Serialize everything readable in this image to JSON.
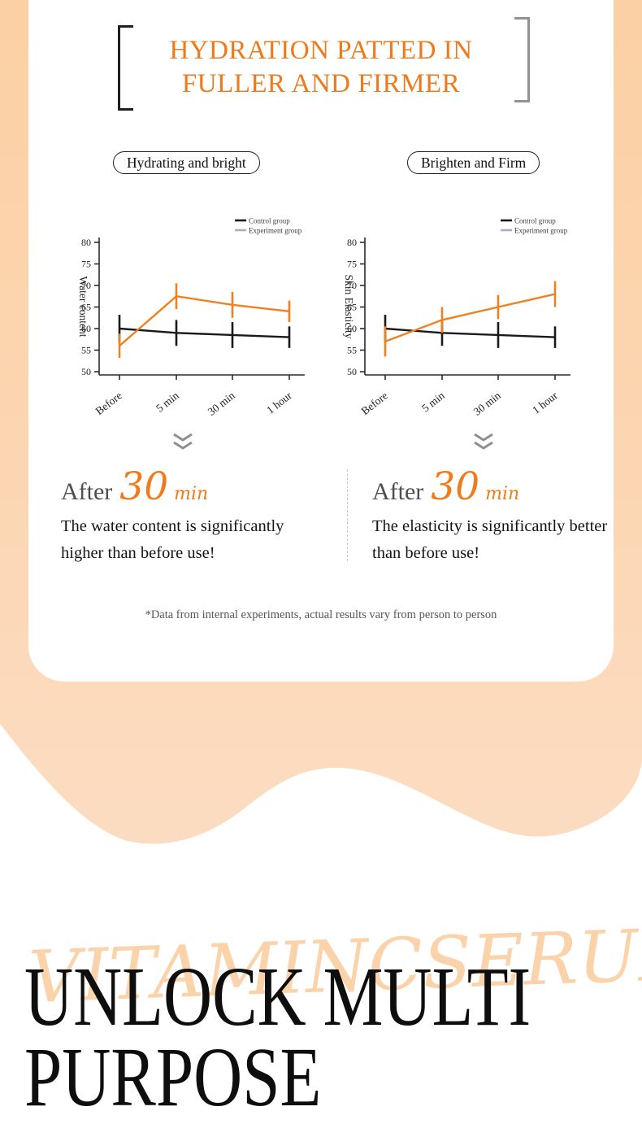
{
  "page": {
    "title_line1": "HYDRATION PATTED IN",
    "title_line2": "FULLER AND FIRMER",
    "pill_left": "Hydrating and bright",
    "pill_right": "Brighten and Firm",
    "disclaimer": "*Data from internal experiments, actual results vary from person to person",
    "watermark": "VITAMINCSERUM",
    "heading_line1": "UNLOCK MULTI",
    "heading_line2": "PURPOSE"
  },
  "colors": {
    "accent_orange": "#ed7a1c",
    "experiment_line": "#f08122",
    "experiment_legend_swatch": "#b9a2cc",
    "control_line": "#1a1a1a",
    "peach_top": "#fbd0a4",
    "peach_bottom": "#fcdcc1",
    "watermark_text": "#fbd3aa"
  },
  "after_sections": [
    {
      "prefix": "After",
      "number": "30",
      "unit": "min",
      "body": "The water content is significantly higher than before use!"
    },
    {
      "prefix": "After",
      "number": "30",
      "unit": "min",
      "body": "The elasticity is significantly better than before use!"
    }
  ],
  "chart_data": [
    {
      "type": "line",
      "title": "Hydrating and bright",
      "ylabel": "Water content",
      "xlabel": "",
      "categories": [
        "Before",
        "5 min",
        "30 min",
        "1 hour"
      ],
      "ylim": [
        50,
        80
      ],
      "yticks": [
        50,
        55,
        60,
        65,
        70,
        75,
        80
      ],
      "grid": false,
      "legend_position": "top-right",
      "error_bars": true,
      "series": [
        {
          "name": "Control group",
          "color": "#1a1a1a",
          "legend_color": "#1a1a1a",
          "values": [
            60,
            59,
            58.5,
            58
          ],
          "errors": [
            3.2,
            3.0,
            3.0,
            2.5
          ]
        },
        {
          "name": "Experiment group",
          "color": "#f08122",
          "legend_color": "#b9a2cc",
          "values": [
            56,
            67.5,
            65.5,
            64
          ],
          "errors": [
            2.8,
            3.0,
            3.0,
            2.5
          ]
        }
      ]
    },
    {
      "type": "line",
      "title": "Brighten and Firm",
      "ylabel": "Skin Elasticity",
      "xlabel": "",
      "categories": [
        "Before",
        "5 min",
        "30 min",
        "1 hour"
      ],
      "ylim": [
        50,
        80
      ],
      "yticks": [
        50,
        55,
        60,
        65,
        70,
        75,
        80
      ],
      "grid": false,
      "legend_position": "top-right",
      "error_bars": true,
      "series": [
        {
          "name": "Control group",
          "color": "#1a1a1a",
          "legend_color": "#1a1a1a",
          "values": [
            60,
            59,
            58.5,
            58
          ],
          "errors": [
            3.2,
            3.0,
            3.0,
            2.5
          ]
        },
        {
          "name": "Experiment group",
          "color": "#f08122",
          "legend_color": "#b9a2cc",
          "values": [
            57,
            62,
            65,
            68
          ],
          "errors": [
            3.5,
            3.0,
            2.8,
            3.0
          ]
        }
      ]
    }
  ]
}
